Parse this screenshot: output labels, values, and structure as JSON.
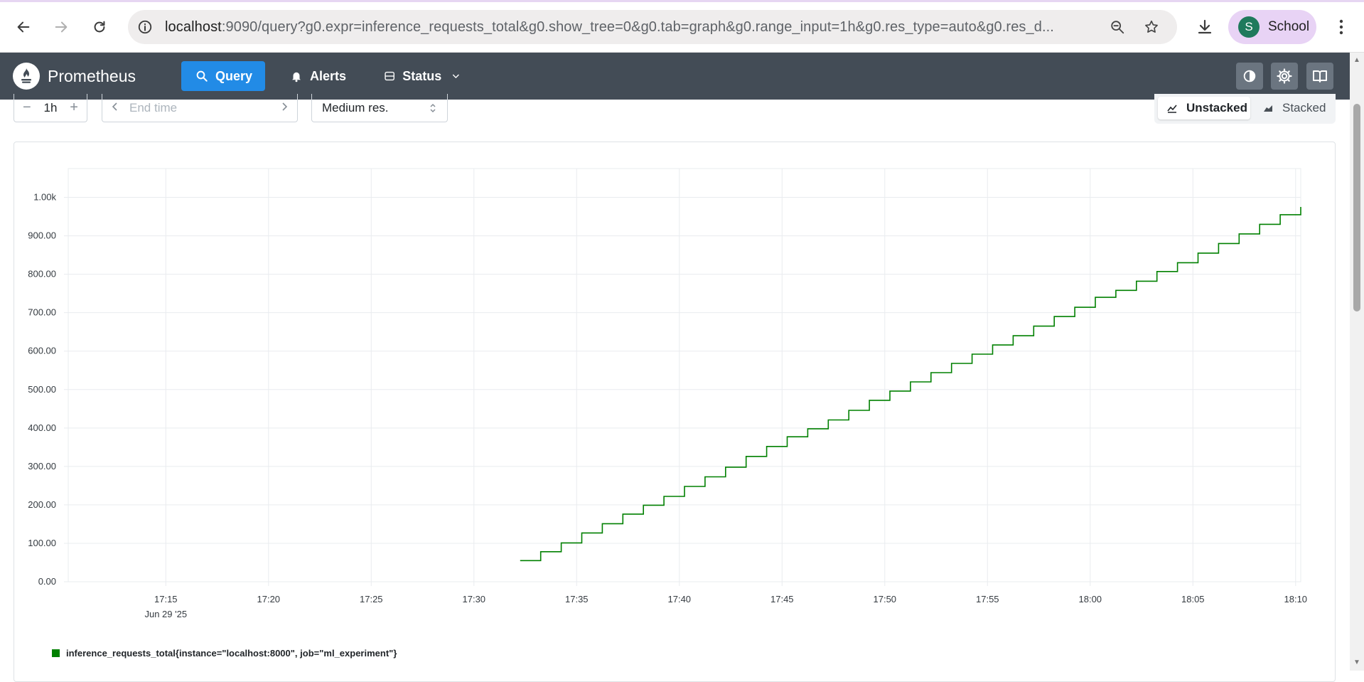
{
  "browser": {
    "url_host": "localhost",
    "url_rest": ":9090/query?g0.expr=inference_requests_total&g0.show_tree=0&g0.tab=graph&g0.range_input=1h&g0.res_type=auto&g0.res_d...",
    "profile_initial": "S",
    "profile_name": "School",
    "icons": [
      "back-arrow-icon",
      "forward-arrow-icon",
      "reload-icon",
      "site-info-icon",
      "zoom-icon",
      "bookmark-star-icon",
      "download-icon",
      "kebab-menu-icon"
    ]
  },
  "navbar": {
    "brand": "Prometheus",
    "items": [
      {
        "label": "Query",
        "icon": "search-icon",
        "active": true
      },
      {
        "label": "Alerts",
        "icon": "bell-icon",
        "active": false
      },
      {
        "label": "Status",
        "icon": "server-icon",
        "active": false
      }
    ],
    "utility_icons": [
      "theme-toggle-icon",
      "settings-gear-icon",
      "docs-book-icon"
    ]
  },
  "controls": {
    "range_minus": "−",
    "range_value": "1h",
    "range_plus": "+",
    "end_time_placeholder": "End time",
    "resolution": "Medium res.",
    "stack_options": [
      {
        "label": "Unstacked",
        "active": true
      },
      {
        "label": "Stacked",
        "active": false
      }
    ]
  },
  "colors": {
    "series": "#008000",
    "navbar_bg": "#434c56",
    "accent": "#228be6"
  },
  "chart_data": {
    "type": "line",
    "line_style": "step",
    "title": "",
    "xlabel": "",
    "ylabel": "",
    "x_ticks": [
      "17:15",
      "17:20",
      "17:25",
      "17:30",
      "17:35",
      "17:40",
      "17:45",
      "17:50",
      "17:55",
      "18:00",
      "18:05",
      "18:10"
    ],
    "x_date_label": "Jun 29 '25",
    "y_ticks": [
      "0.00",
      "100.00",
      "200.00",
      "300.00",
      "400.00",
      "500.00",
      "600.00",
      "700.00",
      "800.00",
      "900.00",
      "1.00k"
    ],
    "ylim": [
      0,
      1075
    ],
    "xlim": [
      "17:10:15",
      "18:10:15"
    ],
    "grid": true,
    "legend_position": "bottom-left",
    "series": [
      {
        "name": "inference_requests_total{instance=\"localhost:8000\", job=\"ml_experiment\"}",
        "color": "#008000",
        "start_time": "17:32:15",
        "end_time": "18:10:15",
        "values": [
          55,
          55,
          78,
          78,
          101,
          101,
          127,
          127,
          151,
          151,
          176,
          176,
          199,
          199,
          222,
          222,
          248,
          248,
          273,
          273,
          298,
          298,
          326,
          326,
          352,
          352,
          377,
          377,
          398,
          398,
          421,
          421,
          446,
          446,
          472,
          472,
          496,
          496,
          520,
          520,
          544,
          544,
          568,
          568,
          592,
          592,
          616,
          616,
          640,
          640,
          665,
          665,
          690,
          690,
          714,
          714,
          740,
          740,
          758,
          758,
          782,
          782,
          807,
          807,
          830,
          830,
          855,
          855,
          880,
          880,
          905,
          905,
          930,
          930,
          955,
          955,
          975
        ]
      }
    ]
  }
}
